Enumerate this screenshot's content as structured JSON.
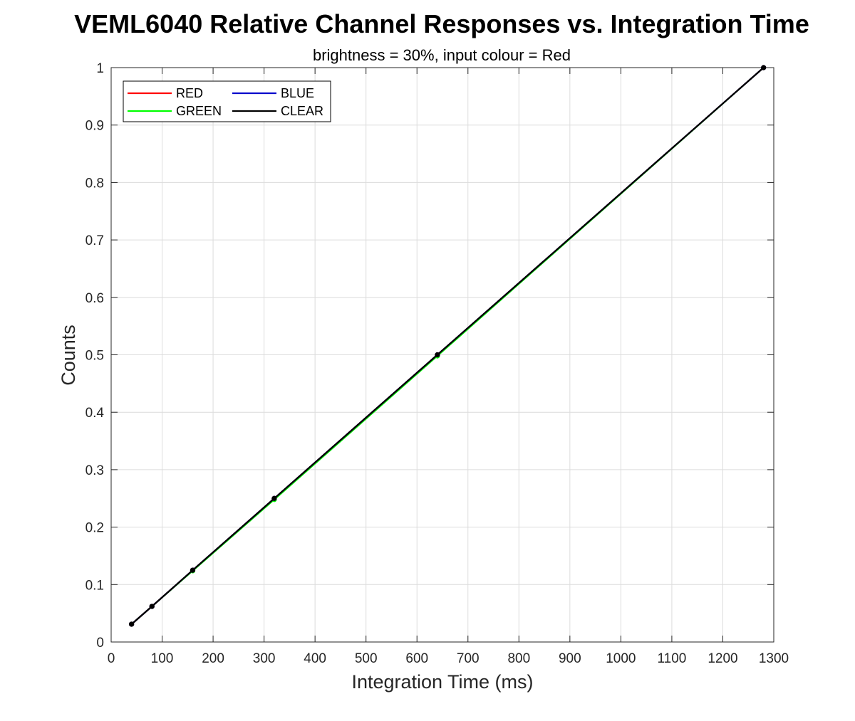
{
  "chart_data": {
    "type": "line",
    "title": "VEML6040 Relative Channel Responses vs. Integration Time",
    "subtitle": "brightness = 30%, input colour = Red",
    "xlabel": "Integration Time (ms)",
    "ylabel": "Counts",
    "xlim": [
      0,
      1300
    ],
    "ylim": [
      0,
      1
    ],
    "x_ticks": [
      0,
      100,
      200,
      300,
      400,
      500,
      600,
      700,
      800,
      900,
      1000,
      1100,
      1200,
      1300
    ],
    "x_tick_labels": [
      "0",
      "100",
      "200",
      "300",
      "400",
      "500",
      "600",
      "700",
      "800",
      "900",
      "1000",
      "1100",
      "1200",
      "1300"
    ],
    "y_ticks": [
      0,
      0.1,
      0.2,
      0.3,
      0.4,
      0.5,
      0.6,
      0.7,
      0.8,
      0.9,
      1
    ],
    "y_tick_labels": [
      "0",
      "0.1",
      "0.2",
      "0.3",
      "0.4",
      "0.5",
      "0.6",
      "0.7",
      "0.8",
      "0.9",
      "1"
    ],
    "grid": true,
    "legend_position": "top-left",
    "legend_columns": 2,
    "x": [
      40,
      80,
      160,
      320,
      640,
      1280
    ],
    "series": [
      {
        "name": "RED",
        "color": "#ff0000",
        "values": [
          0.031,
          0.062,
          0.125,
          0.25,
          0.5,
          1.0
        ]
      },
      {
        "name": "GREEN",
        "color": "#00ff00",
        "values": [
          0.031,
          0.062,
          0.124,
          0.248,
          0.498,
          1.0
        ]
      },
      {
        "name": "BLUE",
        "color": "#0000cc",
        "values": [
          0.031,
          0.062,
          0.125,
          0.25,
          0.5,
          1.0
        ]
      },
      {
        "name": "CLEAR",
        "color": "#000000",
        "values": [
          0.031,
          0.062,
          0.125,
          0.25,
          0.5,
          1.0
        ]
      }
    ]
  }
}
